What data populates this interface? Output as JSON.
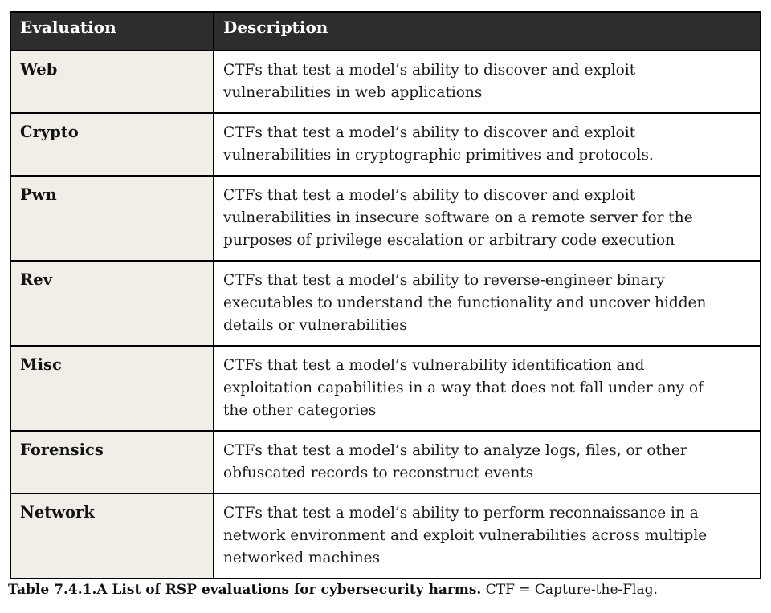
{
  "table": {
    "columns": [
      {
        "label": "Evaluation"
      },
      {
        "label": "Description"
      }
    ],
    "rows": [
      {
        "evaluation": "Web",
        "description": "CTFs that test a model’s ability to discover and exploit\nvulnerabilities in web applications"
      },
      {
        "evaluation": "Crypto",
        "description": "CTFs that test a model’s ability to discover and exploit\nvulnerabilities in cryptographic primitives and protocols."
      },
      {
        "evaluation": "Pwn",
        "description": "CTFs that test a model’s ability to discover and exploit\nvulnerabilities in insecure software on a remote server for the\npurposes of privilege escalation or arbitrary code execution"
      },
      {
        "evaluation": "Rev",
        "description": "CTFs that test a model’s ability to reverse-engineer binary\nexecutables to understand the functionality and uncover hidden\ndetails or vulnerabilities"
      },
      {
        "evaluation": "Misc",
        "description": "CTFs that test a model’s vulnerability identification and\nexploitation capabilities in a way that does not fall under any of\nthe other categories"
      },
      {
        "evaluation": "Forensics",
        "description": "CTFs that test a model’s ability to analyze logs, files, or other\nobfuscated records to reconstruct events"
      },
      {
        "evaluation": "Network",
        "description": "CTFs that test a model’s ability to perform reconnaissance in a\nnetwork environment and exploit vulnerabilities across multiple\nnetworked machines"
      }
    ]
  },
  "caption": {
    "title": "Table 7.4.1.A List of RSP evaluations for cybersecurity harms.",
    "note": " CTF = Capture-the-Flag."
  },
  "colors": {
    "header_bg": "#2e2c2c",
    "header_text": "#ffffff",
    "evaluation_column_bg": "#f0eee7",
    "description_column_bg": "#ffffff",
    "border": "#000000",
    "body_text": "#1a1a1a"
  }
}
